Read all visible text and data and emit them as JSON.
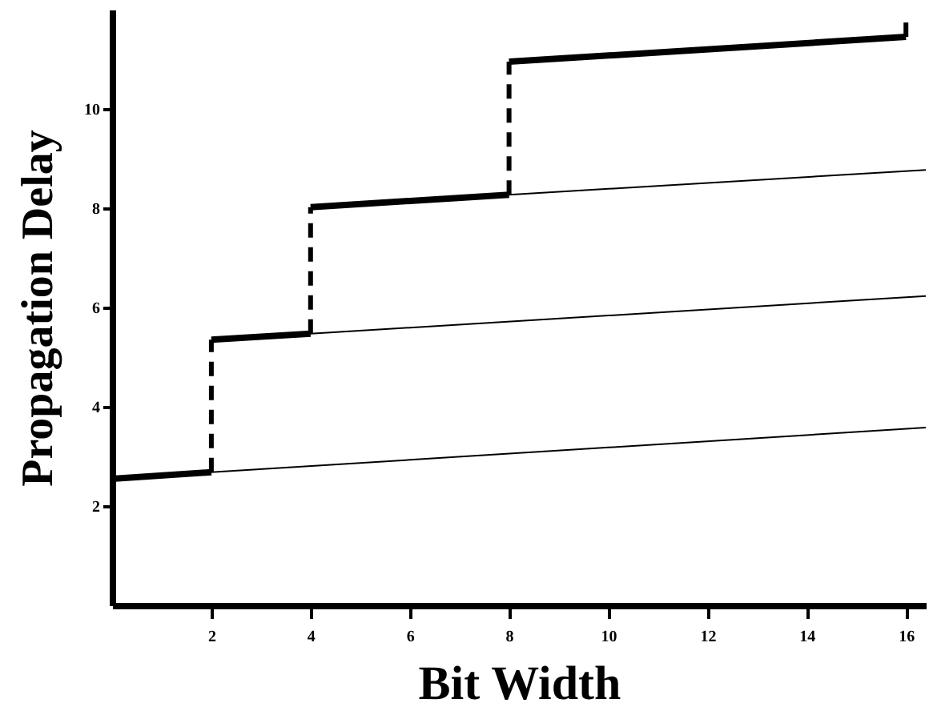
{
  "chart_data": {
    "type": "line",
    "xlabel": "Bit Width",
    "ylabel": "Propagation Delay",
    "xlim": [
      0,
      16.4
    ],
    "ylim": [
      0,
      12
    ],
    "xticks": [
      2,
      4,
      6,
      8,
      10,
      12,
      14,
      16
    ],
    "yticks": [
      2,
      4,
      6,
      8,
      10
    ],
    "grid": false,
    "series": [
      {
        "color": "#000000",
        "x": [
          2,
          16.4
        ],
        "values": [
          2.68,
          3.58
        ]
      },
      {
        "color": "#000000",
        "x": [
          4,
          16.4
        ],
        "values": [
          5.47,
          6.23
        ]
      },
      {
        "color": "#000000",
        "x": [
          8,
          16.4
        ],
        "values": [
          8.27,
          8.77
        ]
      },
      {
        "type": "step",
        "color": "#000000",
        "x": [
          0,
          2,
          2,
          4,
          4,
          8,
          8,
          16,
          16
        ],
        "values": [
          2.55,
          2.68,
          5.35,
          5.47,
          8.02,
          8.27,
          10.95,
          11.45,
          11.8
        ]
      }
    ]
  }
}
